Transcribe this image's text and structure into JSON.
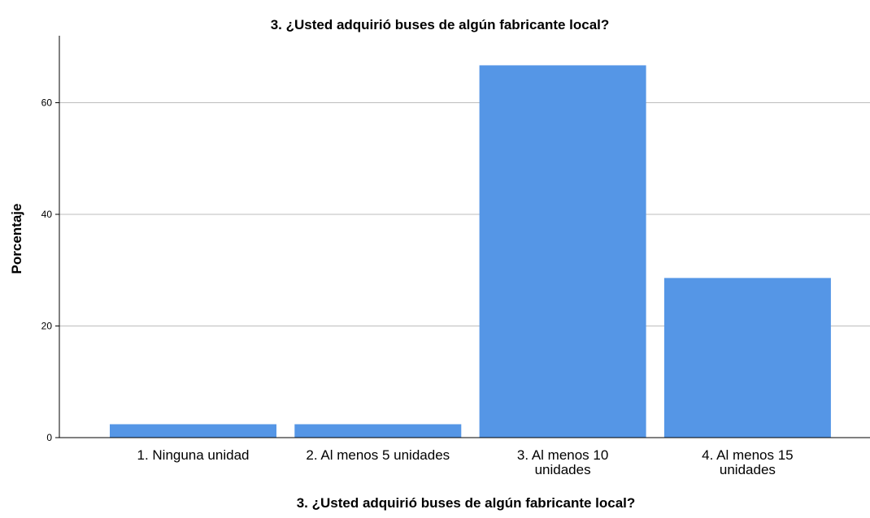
{
  "chart_data": {
    "type": "bar",
    "title": "3. ¿Usted adquirió buses de algún fabricante local?",
    "xlabel": "3. ¿Usted adquirió buses de algún fabricante local?",
    "ylabel": "Porcentaje",
    "categories": [
      [
        "1. Ninguna unidad"
      ],
      [
        "2. Al menos 5 unidades"
      ],
      [
        "3. Al menos 10",
        "unidades"
      ],
      [
        "4. Al menos 15",
        "unidades"
      ]
    ],
    "values": [
      2.4,
      2.4,
      66.7,
      28.6
    ],
    "ylim": [
      0,
      72
    ],
    "yticks": [
      0,
      20,
      40,
      60
    ],
    "grid": true,
    "colors": {
      "bar": "#5596E6",
      "grid": "#BDBDBD",
      "axis": "#000000"
    }
  }
}
